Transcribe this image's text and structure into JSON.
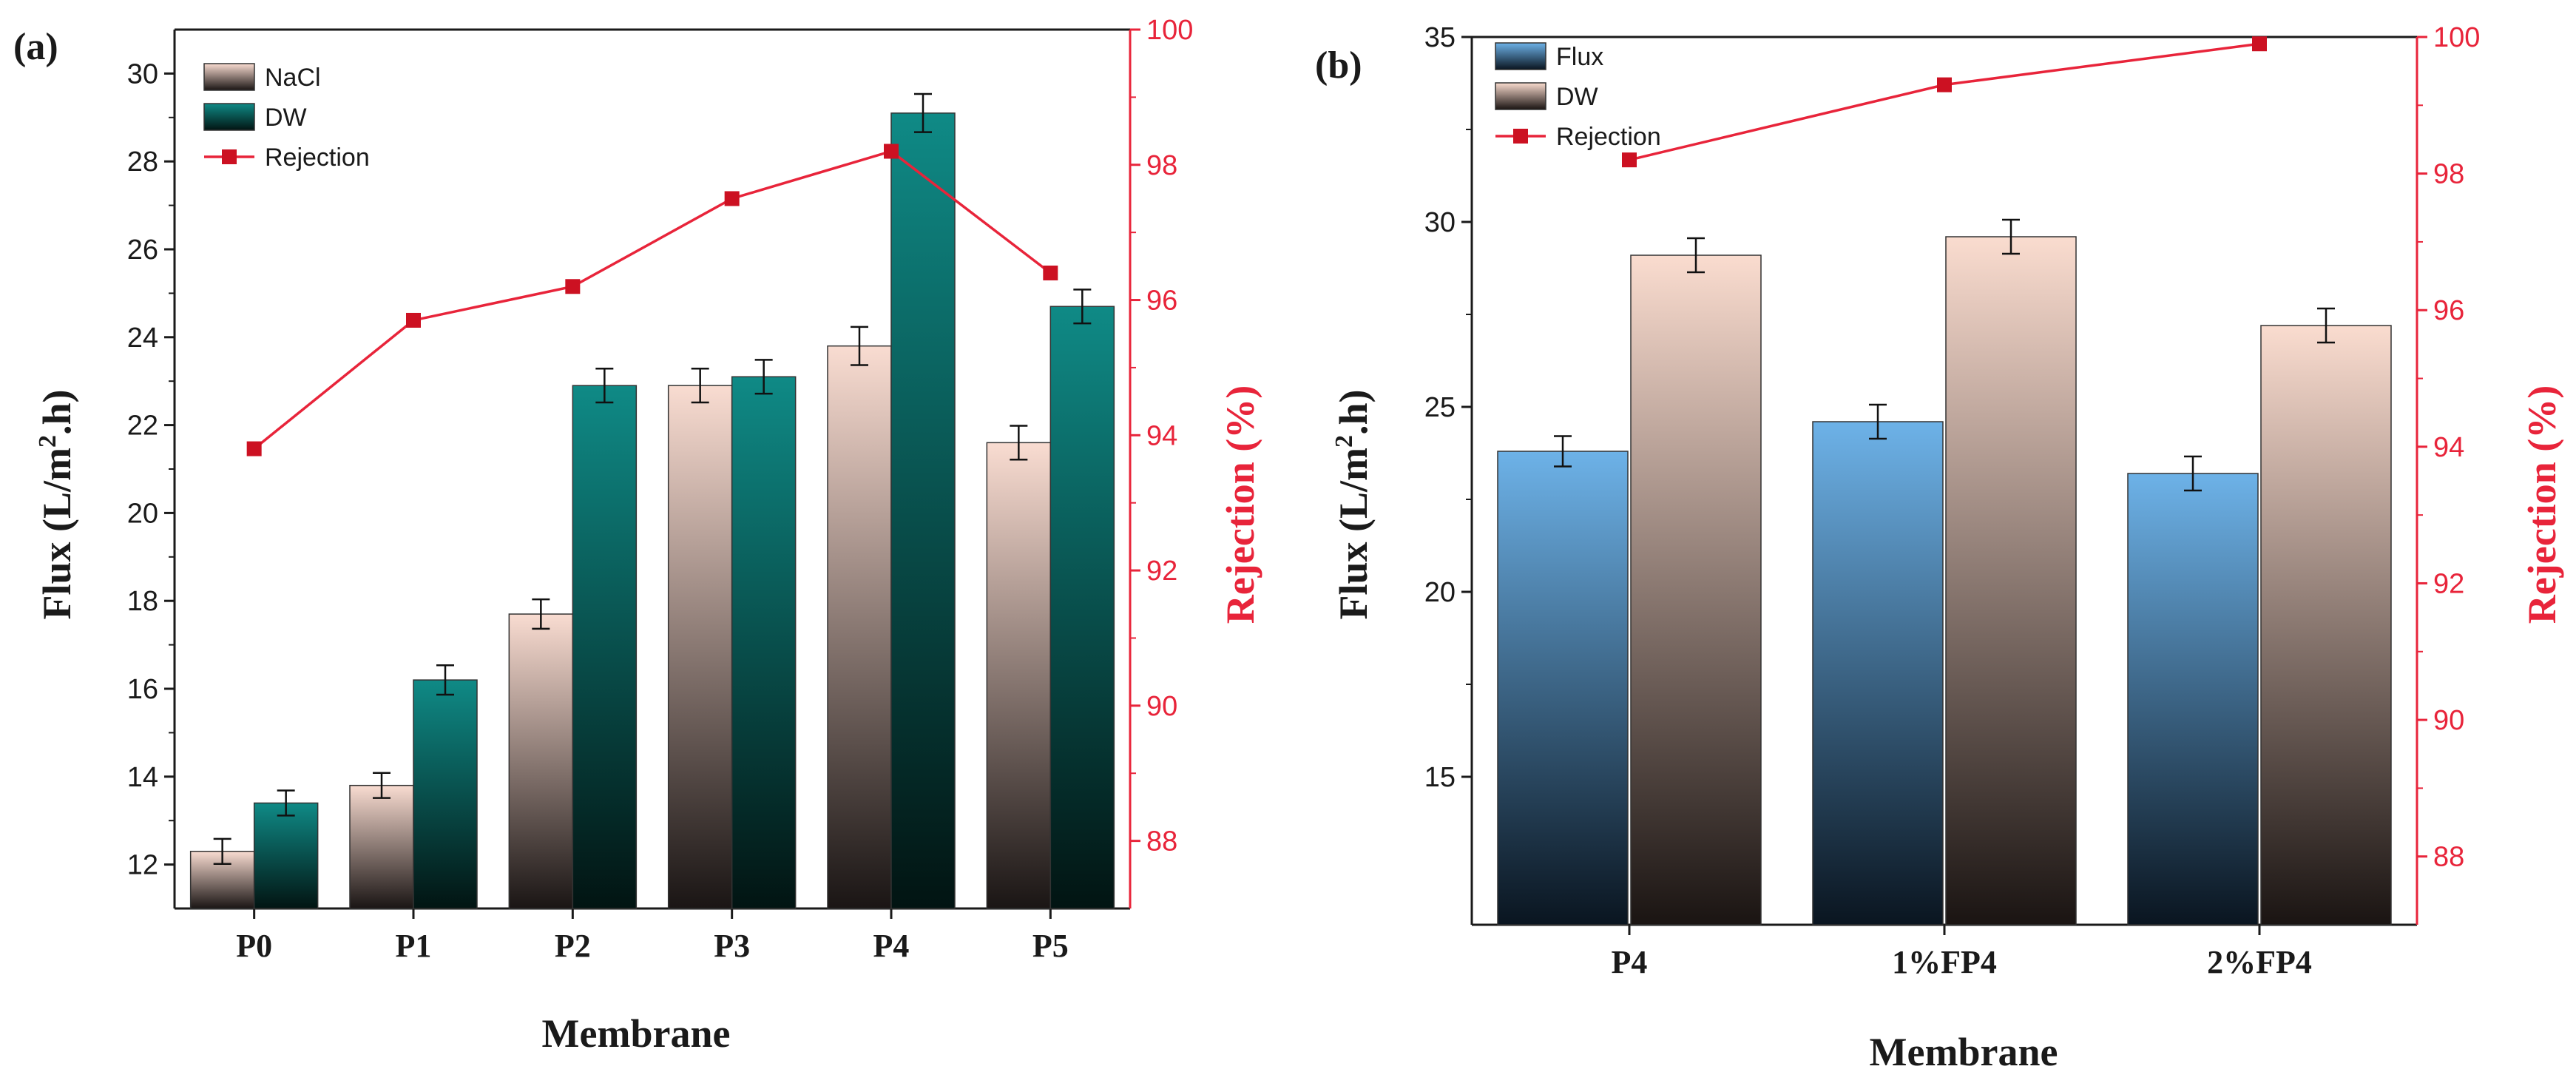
{
  "colors": {
    "nacl_top": "#f9dcd1",
    "nacl_bottom": "#1a1514",
    "dw_a_top": "#0f8a86",
    "dw_a_bottom": "#021412",
    "flux_b_top": "#6db2e8",
    "flux_b_bottom": "#0a1520",
    "dw_b_top": "#fadccf",
    "dw_b_bottom": "#1a1412",
    "rejection": "#e8243a",
    "axis": "#1a1a1a"
  },
  "chart_data": [
    {
      "type": "bar",
      "panel_label": "(a)",
      "categories": [
        "P0",
        "P1",
        "P2",
        "P3",
        "P4",
        "P5"
      ],
      "xlabel": "Membrane",
      "ylabel_main": "Flux (L/m",
      "ylabel_sup": "2",
      "ylabel_tail": ".h)",
      "y2label": "Rejection (%)",
      "ylim": [
        11,
        31
      ],
      "yticks": [
        12,
        14,
        16,
        18,
        20,
        22,
        24,
        26,
        28,
        30
      ],
      "y2lim": [
        87,
        100
      ],
      "y2ticks": [
        88,
        90,
        92,
        94,
        96,
        98,
        100
      ],
      "legend_position": "top-left",
      "series": [
        {
          "name": "NaCl",
          "kind": "bar",
          "values": [
            12.3,
            13.8,
            17.7,
            22.9,
            23.8,
            21.6
          ],
          "errors": [
            0.15,
            0.15,
            0.2,
            0.25,
            0.3,
            0.25
          ]
        },
        {
          "name": "DW",
          "kind": "bar",
          "values": [
            13.4,
            16.2,
            22.9,
            23.1,
            29.1,
            24.7
          ],
          "errors": [
            0.15,
            0.2,
            0.25,
            0.25,
            0.3,
            0.25
          ]
        },
        {
          "name": "Rejection",
          "kind": "line",
          "values": [
            93.8,
            95.7,
            96.2,
            97.5,
            98.2,
            96.4
          ]
        }
      ]
    },
    {
      "type": "bar",
      "panel_label": "(b)",
      "categories": [
        "P4",
        "1%FP4",
        "2%FP4"
      ],
      "xlabel": "Membrane",
      "ylabel_main": "Flux (L/m",
      "ylabel_sup": "2",
      "ylabel_tail": ".h)",
      "y2label": "Rejection (%)",
      "ylim": [
        11,
        35
      ],
      "yticks": [
        15,
        20,
        25,
        30,
        35
      ],
      "y2lim": [
        87,
        100
      ],
      "y2ticks": [
        88,
        90,
        92,
        94,
        96,
        98,
        100
      ],
      "legend_position": "top-left",
      "series": [
        {
          "name": "Flux",
          "kind": "bar",
          "values": [
            23.8,
            24.6,
            23.2
          ],
          "errors": [
            0.25,
            0.3,
            0.3
          ]
        },
        {
          "name": "DW",
          "kind": "bar",
          "values": [
            29.1,
            29.6,
            27.2
          ],
          "errors": [
            0.3,
            0.3,
            0.3
          ]
        },
        {
          "name": "Rejection",
          "kind": "line",
          "values": [
            98.2,
            99.3,
            99.9
          ]
        }
      ]
    }
  ]
}
